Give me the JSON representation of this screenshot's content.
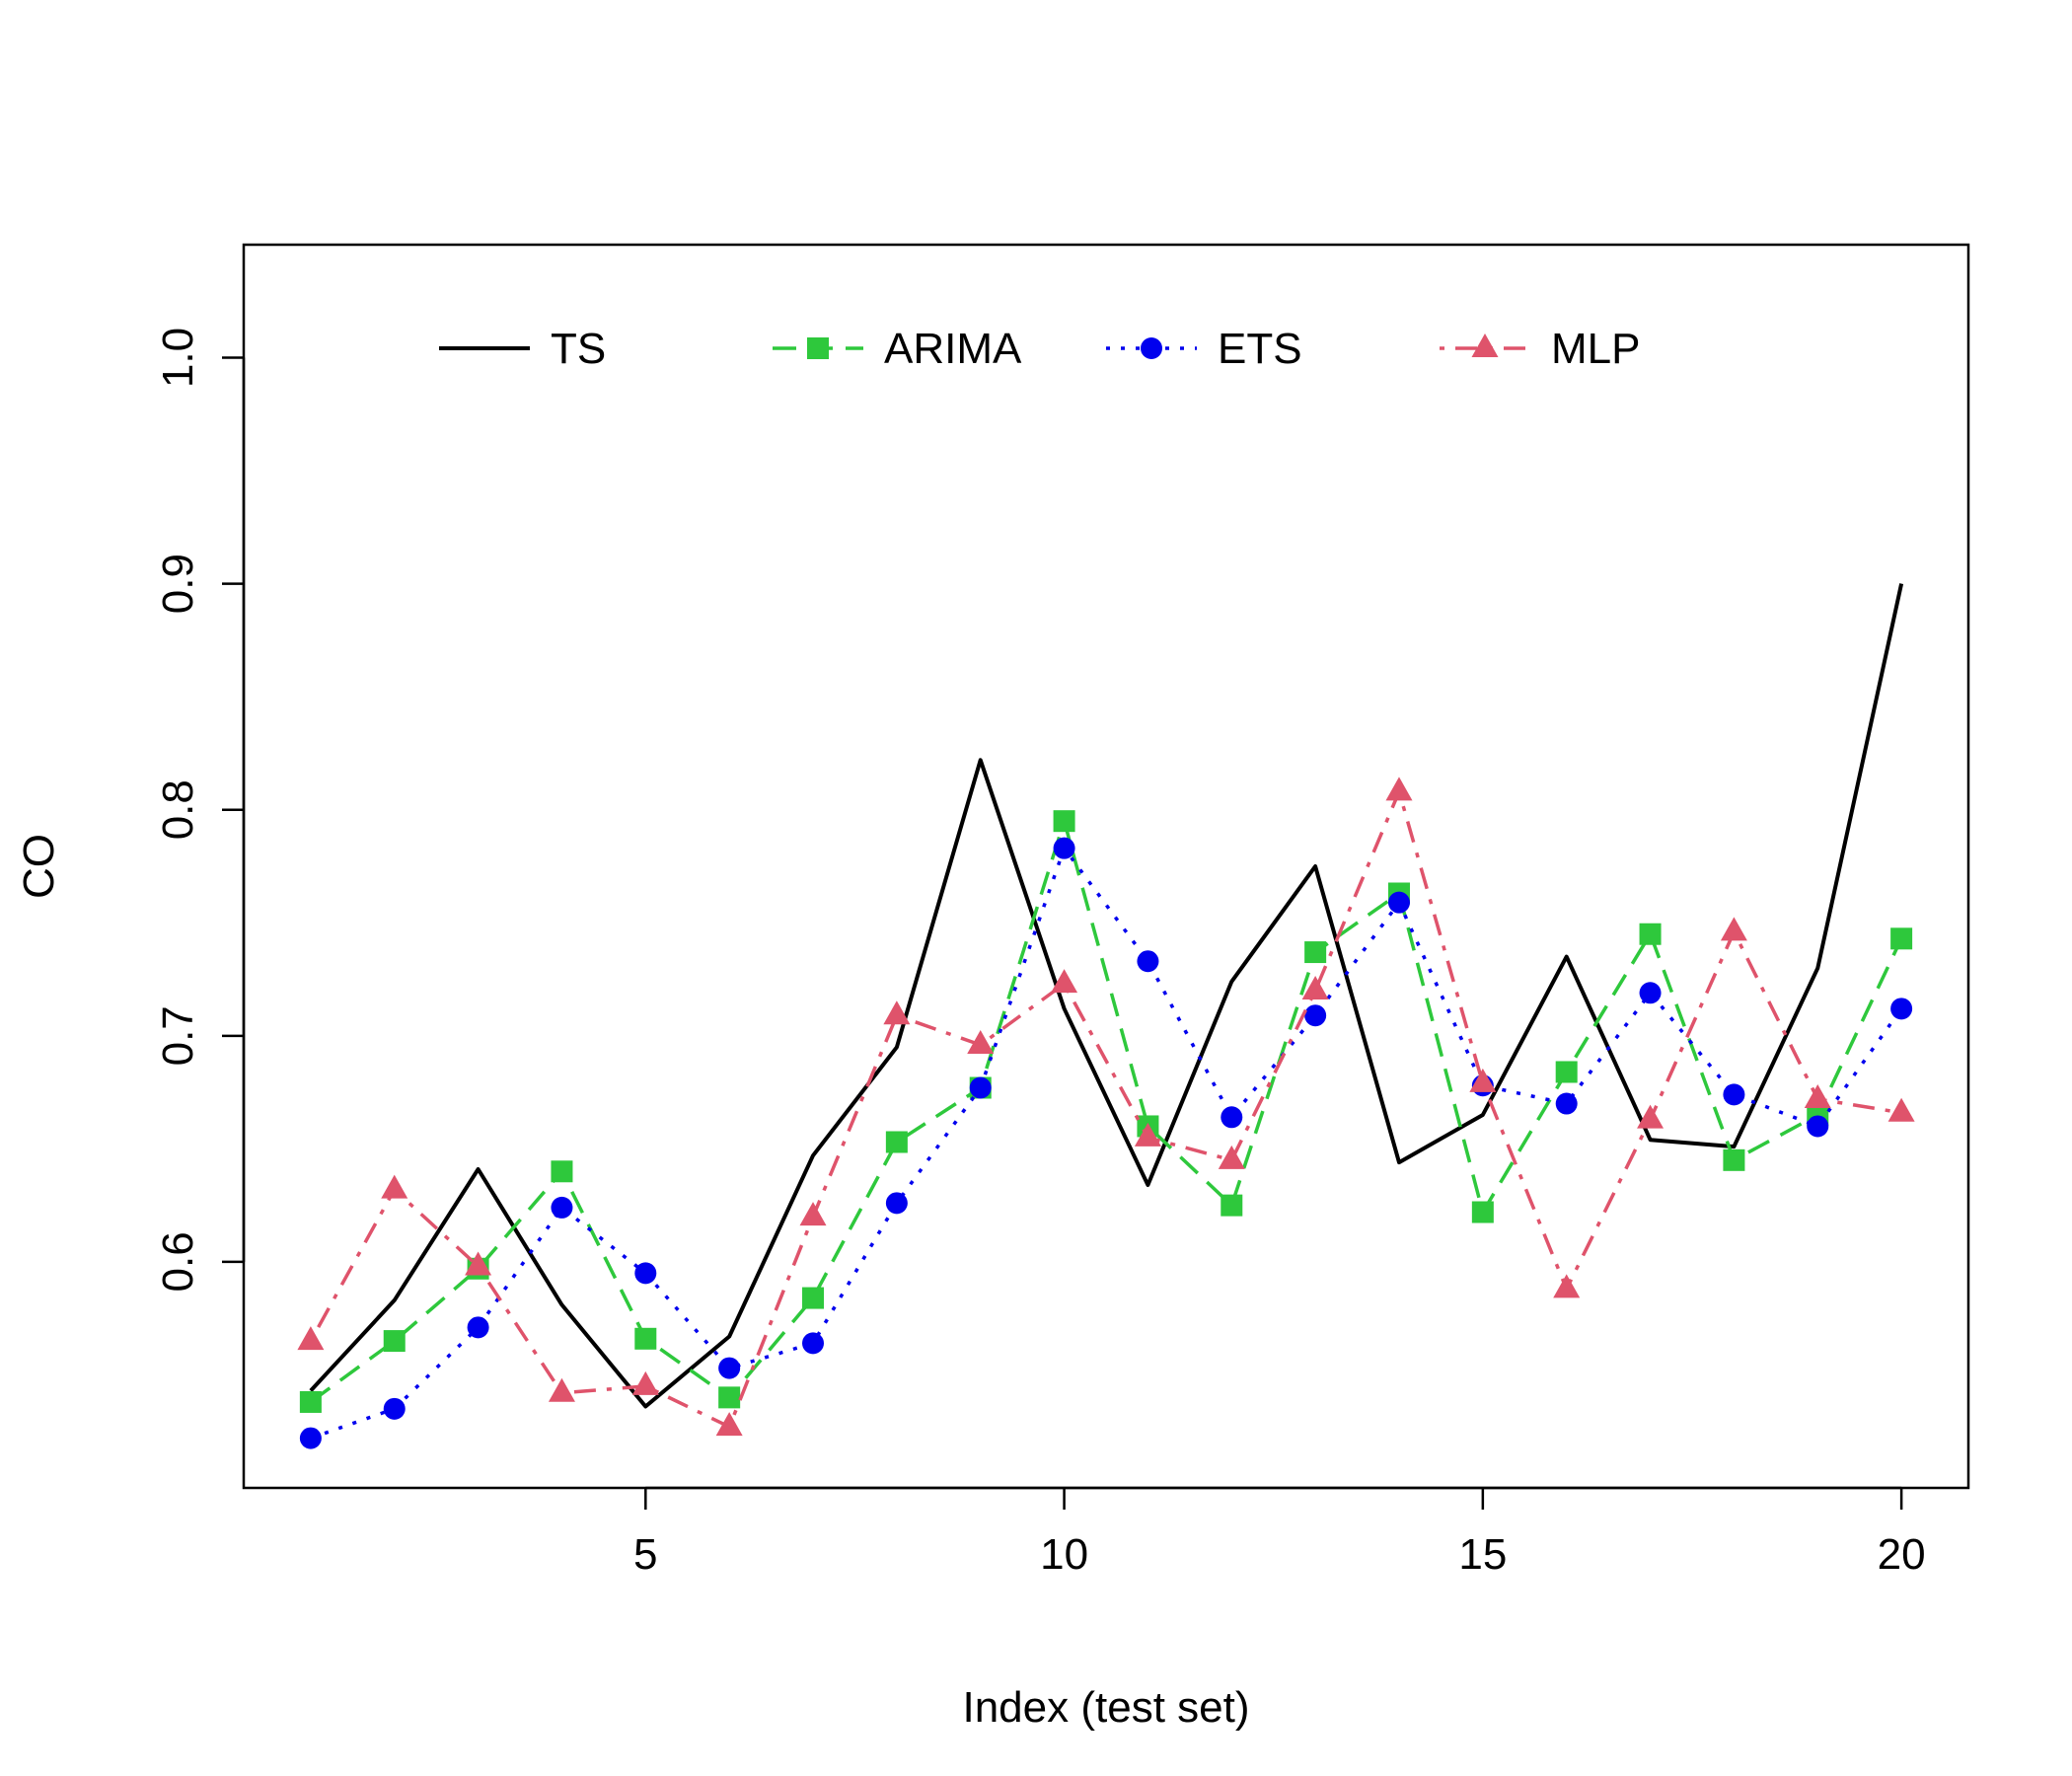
{
  "chart_data": {
    "type": "line",
    "title": "",
    "xlabel": "Index (test set)",
    "ylabel": "CO",
    "xlim": [
      0.2,
      20.8
    ],
    "ylim": [
      0.5,
      1.05
    ],
    "xticks": [
      5,
      10,
      15,
      20
    ],
    "yticks": [
      0.6,
      0.7,
      0.8,
      0.9,
      1.0
    ],
    "ytick_labels": [
      "0.6",
      "0.7",
      "0.8",
      "0.9",
      "1.0"
    ],
    "grid": false,
    "legend_position": "top, horizontal, inside plot area",
    "x": [
      1,
      2,
      3,
      4,
      5,
      6,
      7,
      8,
      9,
      10,
      11,
      12,
      13,
      14,
      15,
      16,
      17,
      18,
      19,
      20
    ],
    "series": [
      {
        "name": "TS",
        "color": "#000000",
        "line": "solid",
        "marker": "none",
        "values": [
          0.543,
          0.583,
          0.641,
          0.581,
          0.536,
          0.567,
          0.647,
          0.695,
          0.822,
          0.712,
          0.634,
          0.724,
          0.775,
          0.644,
          0.665,
          0.735,
          0.654,
          0.651,
          0.73,
          0.9
        ]
      },
      {
        "name": "ARIMA",
        "color": "#2ec83c",
        "line": "dashed",
        "marker": "square",
        "values": [
          0.538,
          0.565,
          0.597,
          0.64,
          0.566,
          0.54,
          0.584,
          0.653,
          0.677,
          0.795,
          0.66,
          0.625,
          0.737,
          0.763,
          0.622,
          0.684,
          0.745,
          0.645,
          0.665,
          0.743
        ]
      },
      {
        "name": "ETS",
        "color": "#0000ee",
        "line": "dotted",
        "marker": "circle",
        "values": [
          0.522,
          0.535,
          0.571,
          0.624,
          0.595,
          0.553,
          0.564,
          0.626,
          0.677,
          0.783,
          0.733,
          0.664,
          0.709,
          0.759,
          0.678,
          0.67,
          0.719,
          0.674,
          0.66,
          0.712
        ]
      },
      {
        "name": "MLP",
        "color": "#df536b",
        "line": "dashdot",
        "marker": "triangle",
        "values": [
          0.565,
          0.632,
          0.598,
          0.542,
          0.545,
          0.527,
          0.62,
          0.709,
          0.696,
          0.723,
          0.655,
          0.645,
          0.72,
          0.808,
          0.679,
          0.588,
          0.663,
          0.746,
          0.672,
          0.666
        ]
      }
    ]
  }
}
